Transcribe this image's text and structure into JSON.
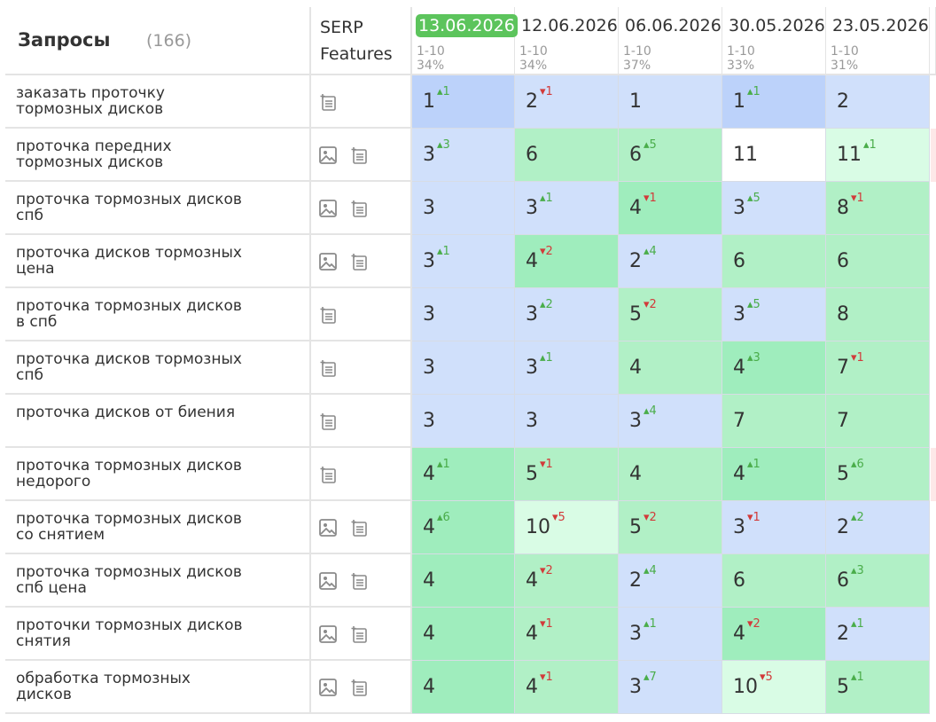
{
  "colors": {
    "blue_strong": "#bcd2fa",
    "blue_light": "#d0e0fb",
    "green_strong": "#9fedbd",
    "green": "#b1f0c6",
    "green_light": "#d9fce5",
    "white": "#ffffff",
    "up": "#4aad4a",
    "down": "#d23a3a",
    "active_date": "#5cc45c"
  },
  "header": {
    "queries_title": "Запросы",
    "queries_count": "(166)",
    "serp_line1": "SERP",
    "serp_line2": "Features"
  },
  "dates": [
    {
      "date": "13.06.2026",
      "range": "1-10",
      "pct": "34%",
      "active": true
    },
    {
      "date": "12.06.2026",
      "range": "1-10",
      "pct": "34%",
      "active": false
    },
    {
      "date": "06.06.2026",
      "range": "1-10",
      "pct": "37%",
      "active": false
    },
    {
      "date": "30.05.2026",
      "range": "1-10",
      "pct": "33%",
      "active": false
    },
    {
      "date": "23.05.2026",
      "range": "1-10",
      "pct": "31%",
      "active": false
    }
  ],
  "rows": [
    {
      "query": "заказать проточку тормозных дисков",
      "icons": [
        "snippet-icon"
      ],
      "cells": [
        {
          "pos": "1",
          "delta": "1",
          "dir": "up",
          "color": "blue_strong"
        },
        {
          "pos": "2",
          "delta": "1",
          "dir": "down",
          "color": "blue_light"
        },
        {
          "pos": "1",
          "delta": "",
          "dir": "",
          "color": "blue_light"
        },
        {
          "pos": "1",
          "delta": "1",
          "dir": "up",
          "color": "blue_strong"
        },
        {
          "pos": "2",
          "delta": "",
          "dir": "",
          "color": "blue_light"
        }
      ]
    },
    {
      "query": "проточка передних тормозных дисков",
      "icons": [
        "image-icon",
        "snippet-icon"
      ],
      "cells": [
        {
          "pos": "3",
          "delta": "3",
          "dir": "up",
          "color": "blue_light"
        },
        {
          "pos": "6",
          "delta": "",
          "dir": "",
          "color": "green"
        },
        {
          "pos": "6",
          "delta": "5",
          "dir": "up",
          "color": "green"
        },
        {
          "pos": "11",
          "delta": "",
          "dir": "",
          "color": "white"
        },
        {
          "pos": "11",
          "delta": "1",
          "dir": "up",
          "color": "green_light"
        }
      ]
    },
    {
      "query": "проточка тормозных дисков спб",
      "icons": [
        "image-icon",
        "snippet-icon"
      ],
      "cells": [
        {
          "pos": "3",
          "delta": "",
          "dir": "",
          "color": "blue_light"
        },
        {
          "pos": "3",
          "delta": "1",
          "dir": "up",
          "color": "blue_light"
        },
        {
          "pos": "4",
          "delta": "1",
          "dir": "down",
          "color": "green_strong"
        },
        {
          "pos": "3",
          "delta": "5",
          "dir": "up",
          "color": "blue_light"
        },
        {
          "pos": "8",
          "delta": "1",
          "dir": "down",
          "color": "green"
        }
      ]
    },
    {
      "query": "проточка дисков тормозных цена",
      "icons": [
        "image-icon",
        "snippet-icon"
      ],
      "cells": [
        {
          "pos": "3",
          "delta": "1",
          "dir": "up",
          "color": "blue_light"
        },
        {
          "pos": "4",
          "delta": "2",
          "dir": "down",
          "color": "green_strong"
        },
        {
          "pos": "2",
          "delta": "4",
          "dir": "up",
          "color": "blue_light"
        },
        {
          "pos": "6",
          "delta": "",
          "dir": "",
          "color": "green"
        },
        {
          "pos": "6",
          "delta": "",
          "dir": "",
          "color": "green"
        }
      ]
    },
    {
      "query": "проточка тормозных дисков в спб",
      "icons": [
        "snippet-icon"
      ],
      "cells": [
        {
          "pos": "3",
          "delta": "",
          "dir": "",
          "color": "blue_light"
        },
        {
          "pos": "3",
          "delta": "2",
          "dir": "up",
          "color": "blue_light"
        },
        {
          "pos": "5",
          "delta": "2",
          "dir": "down",
          "color": "green"
        },
        {
          "pos": "3",
          "delta": "5",
          "dir": "up",
          "color": "blue_light"
        },
        {
          "pos": "8",
          "delta": "",
          "dir": "",
          "color": "green"
        }
      ]
    },
    {
      "query": "проточка дисков тормозных спб",
      "icons": [
        "snippet-icon"
      ],
      "cells": [
        {
          "pos": "3",
          "delta": "",
          "dir": "",
          "color": "blue_light"
        },
        {
          "pos": "3",
          "delta": "1",
          "dir": "up",
          "color": "blue_light"
        },
        {
          "pos": "4",
          "delta": "",
          "dir": "",
          "color": "green"
        },
        {
          "pos": "4",
          "delta": "3",
          "dir": "up",
          "color": "green_strong"
        },
        {
          "pos": "7",
          "delta": "1",
          "dir": "down",
          "color": "green"
        }
      ]
    },
    {
      "query": "проточка дисков от биения",
      "icons": [
        "snippet-icon"
      ],
      "cells": [
        {
          "pos": "3",
          "delta": "",
          "dir": "",
          "color": "blue_light"
        },
        {
          "pos": "3",
          "delta": "",
          "dir": "",
          "color": "blue_light"
        },
        {
          "pos": "3",
          "delta": "4",
          "dir": "up",
          "color": "blue_light"
        },
        {
          "pos": "7",
          "delta": "",
          "dir": "",
          "color": "green"
        },
        {
          "pos": "7",
          "delta": "",
          "dir": "",
          "color": "green"
        }
      ]
    },
    {
      "query": "проточка тормозных дисков недорого",
      "icons": [
        "snippet-icon"
      ],
      "cells": [
        {
          "pos": "4",
          "delta": "1",
          "dir": "up",
          "color": "green_strong"
        },
        {
          "pos": "5",
          "delta": "1",
          "dir": "down",
          "color": "green"
        },
        {
          "pos": "4",
          "delta": "",
          "dir": "",
          "color": "green"
        },
        {
          "pos": "4",
          "delta": "1",
          "dir": "up",
          "color": "green_strong"
        },
        {
          "pos": "5",
          "delta": "6",
          "dir": "up",
          "color": "green"
        }
      ]
    },
    {
      "query": "проточка тормозных дисков со снятием",
      "icons": [
        "image-icon",
        "snippet-icon"
      ],
      "cells": [
        {
          "pos": "4",
          "delta": "6",
          "dir": "up",
          "color": "green_strong"
        },
        {
          "pos": "10",
          "delta": "5",
          "dir": "down",
          "color": "green_light"
        },
        {
          "pos": "5",
          "delta": "2",
          "dir": "down",
          "color": "green"
        },
        {
          "pos": "3",
          "delta": "1",
          "dir": "down",
          "color": "blue_light"
        },
        {
          "pos": "2",
          "delta": "2",
          "dir": "up",
          "color": "blue_light"
        }
      ]
    },
    {
      "query": "проточка тормозных дисков спб цена",
      "icons": [
        "image-icon",
        "snippet-icon"
      ],
      "cells": [
        {
          "pos": "4",
          "delta": "",
          "dir": "",
          "color": "green_strong"
        },
        {
          "pos": "4",
          "delta": "2",
          "dir": "down",
          "color": "green"
        },
        {
          "pos": "2",
          "delta": "4",
          "dir": "up",
          "color": "blue_light"
        },
        {
          "pos": "6",
          "delta": "",
          "dir": "",
          "color": "green"
        },
        {
          "pos": "6",
          "delta": "3",
          "dir": "up",
          "color": "green"
        }
      ]
    },
    {
      "query": "проточки тормозных дисков снятия",
      "icons": [
        "image-icon",
        "snippet-icon"
      ],
      "cells": [
        {
          "pos": "4",
          "delta": "",
          "dir": "",
          "color": "green_strong"
        },
        {
          "pos": "4",
          "delta": "1",
          "dir": "down",
          "color": "green"
        },
        {
          "pos": "3",
          "delta": "1",
          "dir": "up",
          "color": "blue_light"
        },
        {
          "pos": "4",
          "delta": "2",
          "dir": "down",
          "color": "green_strong"
        },
        {
          "pos": "2",
          "delta": "1",
          "dir": "up",
          "color": "blue_light"
        }
      ]
    },
    {
      "query": "обработка тормозных дисков",
      "icons": [
        "image-icon",
        "snippet-icon"
      ],
      "cells": [
        {
          "pos": "4",
          "delta": "",
          "dir": "",
          "color": "green_strong"
        },
        {
          "pos": "4",
          "delta": "1",
          "dir": "down",
          "color": "green"
        },
        {
          "pos": "3",
          "delta": "7",
          "dir": "up",
          "color": "blue_light"
        },
        {
          "pos": "10",
          "delta": "5",
          "dir": "down",
          "color": "green_light"
        },
        {
          "pos": "5",
          "delta": "1",
          "dir": "up",
          "color": "green"
        }
      ]
    }
  ]
}
